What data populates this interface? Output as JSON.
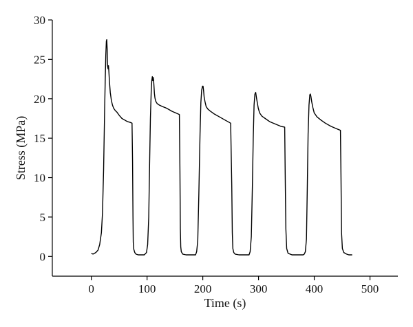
{
  "chart_data": {
    "type": "line",
    "title": "",
    "xlabel": "Time (s)",
    "ylabel": "Stress (MPa)",
    "xlim": [
      -70,
      550
    ],
    "ylim": [
      -2.5,
      30
    ],
    "xticks": [
      0,
      100,
      200,
      300,
      400,
      500
    ],
    "xtick_labels": [
      "0",
      "100",
      "200",
      "300",
      "400",
      "500"
    ],
    "yticks": [
      0,
      5,
      10,
      15,
      20,
      25,
      30
    ],
    "ytick_labels": [
      "0",
      "5",
      "10",
      "15",
      "20",
      "25",
      "30"
    ],
    "grid": false,
    "legend": "none",
    "series": [
      {
        "color": "#000000",
        "x": [
          0,
          3,
          8,
          12,
          15,
          18,
          20,
          22,
          24,
          25,
          26,
          27,
          27.7,
          28.4,
          29,
          30,
          30.8,
          31.5,
          32.5,
          34,
          36,
          38,
          40,
          43,
          46,
          50,
          55,
          60,
          65,
          70,
          73,
          74,
          74.7,
          75.3,
          76.2,
          78,
          80,
          84,
          90,
          95,
          99,
          101,
          103,
          104.5,
          106,
          107.5,
          108.5,
          109.5,
          110.3,
          111,
          111.7,
          112.4,
          113.2,
          114.2,
          115.5,
          118,
          122,
          128,
          135,
          145,
          155,
          158,
          159,
          159.7,
          160.5,
          161.5,
          164,
          170,
          180,
          187,
          189,
          191,
          193,
          195,
          196.5,
          198,
          199.5,
          200.5,
          201.5,
          202.5,
          204,
          206,
          209,
          214,
          220,
          230,
          240,
          250,
          252,
          253,
          254,
          255.5,
          258,
          265,
          275,
          283,
          285,
          287,
          289,
          290.5,
          292,
          293.5,
          295,
          296,
          297.5,
          299.5,
          302,
          306,
          312,
          320,
          330,
          340,
          347,
          348,
          349,
          350.5,
          353,
          360,
          370,
          380,
          382,
          384,
          386,
          387.5,
          389,
          390.5,
          392,
          393,
          394,
          395.5,
          397.5,
          400,
          405,
          412,
          420,
          430,
          440,
          447,
          448,
          449,
          450.5,
          453,
          458,
          462,
          468
        ],
        "y": [
          0.4,
          0.3,
          0.5,
          0.8,
          1.5,
          3,
          5.5,
          11,
          19,
          22.5,
          25.5,
          27.3,
          27.5,
          26.3,
          24.2,
          23.8,
          24.2,
          23.4,
          22.2,
          20.8,
          19.8,
          19.2,
          18.8,
          18.5,
          18.3,
          17.9,
          17.5,
          17.3,
          17.1,
          17,
          16.9,
          12,
          5,
          1.8,
          0.9,
          0.5,
          0.3,
          0.2,
          0.2,
          0.2,
          0.5,
          1.5,
          5,
          11.5,
          17.5,
          21,
          22.3,
          22.8,
          22.3,
          22.7,
          22.4,
          21.6,
          20.7,
          20.1,
          19.7,
          19.4,
          19.2,
          19,
          18.8,
          18.4,
          18.1,
          18,
          11,
          3.5,
          1.2,
          0.6,
          0.3,
          0.2,
          0.2,
          0.2,
          0.6,
          2,
          8,
          15.5,
          19.5,
          21.1,
          21.6,
          21.6,
          21,
          20.2,
          19.6,
          19,
          18.7,
          18.4,
          18.1,
          17.7,
          17.3,
          16.9,
          9,
          3,
          1,
          0.5,
          0.3,
          0.2,
          0.2,
          0.2,
          0.6,
          2.5,
          9,
          15,
          19.2,
          20.6,
          20.8,
          20.3,
          19.6,
          18.8,
          18.2,
          17.8,
          17.5,
          17.1,
          16.8,
          16.5,
          16.4,
          10,
          3.5,
          1,
          0.4,
          0.2,
          0.2,
          0.2,
          0.3,
          0.6,
          2.2,
          8.5,
          15.5,
          19.2,
          20.5,
          20.6,
          20.3,
          19.6,
          18.9,
          18.2,
          17.7,
          17.3,
          16.9,
          16.5,
          16.2,
          16,
          10,
          3,
          1,
          0.5,
          0.3,
          0.2,
          0.2
        ]
      }
    ]
  }
}
